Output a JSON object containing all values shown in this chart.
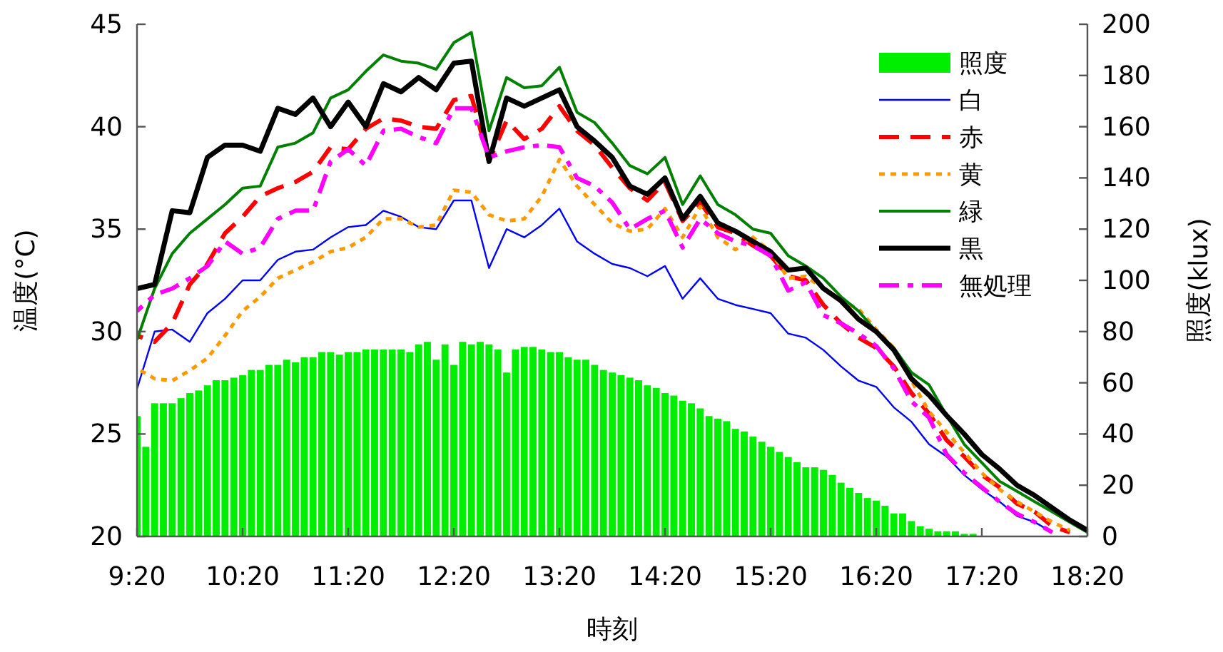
{
  "chart_data": {
    "type": "line",
    "xlabel": "時刻",
    "ylabel": "温度(°C)",
    "y2label": "照度(klux)",
    "legend": "top right",
    "xlim": [
      9.3333,
      18.3333
    ],
    "xticks": [
      {
        "value": 9.3333,
        "label": "9:20"
      },
      {
        "value": 10.3333,
        "label": "10:20"
      },
      {
        "value": 11.3333,
        "label": "11:20"
      },
      {
        "value": 12.3333,
        "label": "12:20"
      },
      {
        "value": 13.3333,
        "label": "13:20"
      },
      {
        "value": 14.3333,
        "label": "14:20"
      },
      {
        "value": 15.3333,
        "label": "15:20"
      },
      {
        "value": 16.3333,
        "label": "16:20"
      },
      {
        "value": 17.3333,
        "label": "17:20"
      },
      {
        "value": 18.3333,
        "label": "18:20"
      }
    ],
    "ylim": [
      20,
      45
    ],
    "yticks": [
      20,
      25,
      30,
      35,
      40,
      45
    ],
    "y2lim": [
      0,
      200
    ],
    "y2ticks": [
      0,
      20,
      40,
      60,
      80,
      100,
      120,
      140,
      160,
      180,
      200
    ],
    "x": [
      9.3333,
      9.5,
      9.6667,
      9.8333,
      10,
      10.1667,
      10.3333,
      10.5,
      10.6667,
      10.8333,
      11,
      11.1667,
      11.3333,
      11.5,
      11.6667,
      11.8333,
      12,
      12.1667,
      12.3333,
      12.5,
      12.6667,
      12.8333,
      13,
      13.1667,
      13.3333,
      13.5,
      13.6667,
      13.8333,
      14,
      14.1667,
      14.3333,
      14.5,
      14.6667,
      14.8333,
      15,
      15.1667,
      15.3333,
      15.5,
      15.6667,
      15.8333,
      16,
      16.1667,
      16.3333,
      16.5,
      16.6667,
      16.8333,
      17,
      17.1667,
      17.3333,
      17.5,
      17.6667,
      17.8333,
      18,
      18.1667,
      18.3333
    ],
    "series": [
      {
        "name": "照度",
        "type": "bar",
        "axis": "y2",
        "color": "#00ee00",
        "x": [
          9.3333,
          9.4167,
          9.5,
          9.5833,
          9.6667,
          9.75,
          9.8333,
          9.9167,
          10,
          10.0833,
          10.1667,
          10.25,
          10.3333,
          10.4167,
          10.5,
          10.5833,
          10.6667,
          10.75,
          10.8333,
          10.9167,
          11,
          11.0833,
          11.1667,
          11.25,
          11.3333,
          11.4167,
          11.5,
          11.5833,
          11.6667,
          11.75,
          11.8333,
          11.9167,
          12,
          12.0833,
          12.1667,
          12.25,
          12.3333,
          12.4167,
          12.5,
          12.5833,
          12.6667,
          12.75,
          12.8333,
          12.9167,
          13,
          13.0833,
          13.1667,
          13.25,
          13.3333,
          13.4167,
          13.5,
          13.5833,
          13.6667,
          13.75,
          13.8333,
          13.9167,
          14,
          14.0833,
          14.1667,
          14.25,
          14.3333,
          14.4167,
          14.5,
          14.5833,
          14.6667,
          14.75,
          14.8333,
          14.9167,
          15,
          15.0833,
          15.1667,
          15.25,
          15.3333,
          15.4167,
          15.5,
          15.5833,
          15.6667,
          15.75,
          15.8333,
          15.9167,
          16,
          16.0833,
          16.1667,
          16.25,
          16.3333,
          16.4167,
          16.5,
          16.5833,
          16.6667,
          16.75,
          16.8333,
          16.9167,
          17,
          17.0833,
          17.1667,
          17.25
        ],
        "values": [
          47,
          35,
          52,
          52,
          52,
          54,
          56,
          57,
          59,
          61,
          61,
          62,
          63,
          65,
          65,
          67,
          67,
          69,
          68,
          70,
          70,
          72,
          72,
          71,
          72,
          72,
          73,
          73,
          73,
          73,
          73,
          72,
          75,
          76,
          69,
          75,
          67,
          76,
          75,
          76,
          75,
          73,
          64,
          73,
          74,
          74,
          73,
          72,
          72,
          70,
          69,
          69,
          67,
          65,
          64,
          63,
          62,
          61,
          59,
          58,
          56,
          55,
          53,
          52,
          50,
          47,
          46,
          45,
          42,
          41,
          39,
          37,
          35,
          33,
          31,
          29,
          27,
          27,
          26,
          24,
          21,
          19,
          17,
          15,
          14,
          12,
          9,
          9,
          6,
          4,
          3,
          2,
          2,
          2,
          1,
          1
        ]
      },
      {
        "name": "白",
        "line_style": "solid",
        "color": "#0000ff",
        "values": [
          27.2,
          30.0,
          30.1,
          29.5,
          30.9,
          31.6,
          32.5,
          32.5,
          33.5,
          33.9,
          34.0,
          34.6,
          35.1,
          35.2,
          35.9,
          35.6,
          35.1,
          35.0,
          36.4,
          36.4,
          33.1,
          35.0,
          34.6,
          35.2,
          36.0,
          34.4,
          33.8,
          33.3,
          33.1,
          32.7,
          33.2,
          31.6,
          32.6,
          31.6,
          31.3,
          31.1,
          30.9,
          29.9,
          29.7,
          29.1,
          28.3,
          27.6,
          27.3,
          26.3,
          25.6,
          24.5,
          23.9,
          23.0,
          22.3,
          21.7,
          21.0,
          20.7,
          20.2,
          null,
          null
        ]
      },
      {
        "name": "赤",
        "line_style": "dashed",
        "color": "#ff0000",
        "values": [
          29.8,
          29.5,
          30.4,
          32.3,
          33.3,
          34.8,
          35.6,
          36.6,
          37.0,
          37.3,
          37.8,
          39.0,
          38.9,
          39.9,
          40.4,
          40.3,
          40.0,
          39.9,
          41.3,
          41.5,
          38.3,
          40.3,
          39.4,
          39.9,
          41.0,
          39.8,
          39.1,
          38.0,
          37.0,
          36.4,
          37.3,
          35.4,
          36.3,
          35.1,
          34.8,
          34.2,
          33.7,
          32.7,
          32.5,
          31.3,
          30.4,
          29.7,
          29.2,
          28.3,
          27.0,
          26.0,
          24.7,
          23.9,
          23.0,
          22.4,
          21.6,
          21.2,
          20.5,
          20.2,
          null
        ]
      },
      {
        "name": "黄",
        "line_style": "dotted",
        "color": "#ff9900",
        "values": [
          28.2,
          27.7,
          27.6,
          28.1,
          28.7,
          29.8,
          31.0,
          31.7,
          32.6,
          33.0,
          33.4,
          33.9,
          34.1,
          34.6,
          35.5,
          35.5,
          35.1,
          35.2,
          36.9,
          36.8,
          35.7,
          35.4,
          35.5,
          36.6,
          38.4,
          37.1,
          36.2,
          35.3,
          34.9,
          35.0,
          36.0,
          34.6,
          36.1,
          34.6,
          34.0,
          34.6,
          33.9,
          32.6,
          32.7,
          32.1,
          31.5,
          31.1,
          30.1,
          29.2,
          27.6,
          26.1,
          25.1,
          24.1,
          23.1,
          22.3,
          21.7,
          21.2,
          20.7,
          20.3,
          null
        ]
      },
      {
        "name": "緑",
        "line_style": "solid",
        "color": "#008000",
        "values": [
          29.6,
          32.1,
          33.8,
          34.8,
          35.5,
          36.2,
          37.0,
          37.1,
          39.0,
          39.2,
          39.7,
          41.4,
          41.8,
          42.7,
          43.5,
          43.2,
          43.1,
          42.8,
          44.1,
          44.6,
          39.8,
          42.4,
          41.9,
          42.0,
          42.9,
          40.7,
          40.2,
          39.2,
          38.1,
          37.7,
          38.5,
          36.2,
          37.6,
          36.2,
          35.7,
          35.0,
          34.8,
          33.7,
          33.2,
          32.6,
          31.7,
          31.0,
          30.0,
          29.2,
          28.0,
          27.4,
          25.9,
          24.5,
          23.6,
          22.7,
          22.2,
          21.7,
          21.2,
          20.7,
          20.2
        ]
      },
      {
        "name": "黒",
        "line_style": "solid",
        "color": "#000000",
        "values": [
          32.1,
          32.3,
          35.9,
          35.8,
          38.5,
          39.1,
          39.1,
          38.8,
          40.9,
          40.6,
          41.4,
          40.0,
          41.2,
          40.0,
          42.1,
          41.7,
          42.4,
          41.8,
          43.1,
          43.2,
          38.3,
          41.4,
          41.0,
          41.4,
          41.8,
          40.0,
          39.3,
          38.5,
          37.1,
          36.7,
          37.5,
          35.5,
          36.6,
          35.3,
          34.9,
          34.4,
          33.9,
          33.0,
          33.1,
          32.1,
          31.5,
          30.6,
          30.0,
          29.1,
          27.7,
          26.9,
          25.9,
          25.0,
          24.0,
          23.3,
          22.5,
          22.0,
          21.4,
          20.8,
          20.3
        ]
      },
      {
        "name": "無処理",
        "line_style": "dashdot",
        "color": "#ff00ff",
        "values": [
          31.0,
          31.8,
          32.1,
          32.6,
          33.2,
          34.4,
          33.8,
          34.1,
          35.5,
          35.9,
          35.9,
          38.3,
          38.9,
          38.1,
          39.8,
          39.9,
          39.5,
          39.2,
          40.9,
          40.9,
          38.5,
          38.8,
          39.0,
          39.1,
          39.0,
          37.5,
          37.1,
          36.3,
          35.0,
          35.5,
          35.9,
          34.1,
          35.5,
          34.8,
          34.4,
          34.2,
          33.7,
          32.0,
          32.4,
          30.8,
          30.4,
          29.9,
          29.3,
          28.2,
          26.6,
          25.8,
          24.0,
          23.1,
          22.4,
          21.7,
          21.1,
          20.7,
          20.2,
          null,
          null
        ]
      }
    ]
  }
}
